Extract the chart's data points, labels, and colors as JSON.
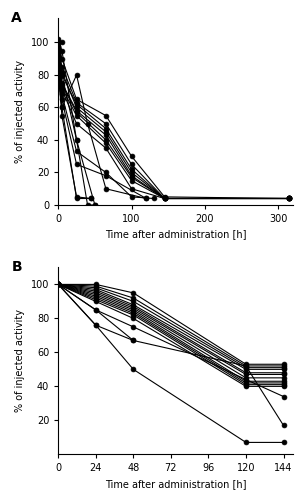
{
  "panel_A": {
    "label": "A",
    "series": [
      {
        "t": [
          0,
          5
        ],
        "v": [
          100,
          100
        ]
      },
      {
        "t": [
          0,
          5,
          25,
          50
        ],
        "v": [
          100,
          80,
          40,
          0
        ]
      },
      {
        "t": [
          0,
          5,
          25,
          40,
          50
        ],
        "v": [
          102,
          95,
          40,
          0,
          0
        ]
      },
      {
        "t": [
          0,
          5,
          25,
          65,
          100,
          145,
          315
        ],
        "v": [
          100,
          90,
          65,
          55,
          30,
          5,
          4
        ]
      },
      {
        "t": [
          0,
          5,
          25,
          65,
          100,
          145,
          315
        ],
        "v": [
          98,
          85,
          63,
          50,
          25,
          4,
          4
        ]
      },
      {
        "t": [
          0,
          5,
          25,
          65,
          100,
          145,
          315
        ],
        "v": [
          97,
          80,
          62,
          47,
          22,
          4,
          4
        ]
      },
      {
        "t": [
          0,
          5,
          25,
          65,
          100,
          145,
          315
        ],
        "v": [
          96,
          82,
          60,
          45,
          20,
          4,
          4
        ]
      },
      {
        "t": [
          0,
          5,
          25,
          65,
          100,
          145,
          315
        ],
        "v": [
          95,
          75,
          58,
          43,
          18,
          4,
          4
        ]
      },
      {
        "t": [
          0,
          5,
          25,
          65,
          100,
          145,
          315
        ],
        "v": [
          94,
          74,
          57,
          40,
          17,
          4,
          4
        ]
      },
      {
        "t": [
          0,
          5,
          25,
          65,
          100,
          145,
          315
        ],
        "v": [
          93,
          72,
          55,
          38,
          15,
          4,
          4
        ]
      },
      {
        "t": [
          0,
          5,
          25,
          65,
          100,
          145
        ],
        "v": [
          92,
          71,
          50,
          35,
          10,
          4
        ]
      },
      {
        "t": [
          0,
          5,
          25,
          65,
          100,
          130
        ],
        "v": [
          90,
          68,
          33,
          20,
          5,
          4
        ]
      },
      {
        "t": [
          0,
          5,
          25,
          65,
          120
        ],
        "v": [
          88,
          65,
          25,
          18,
          4
        ]
      },
      {
        "t": [
          0,
          5,
          25,
          40,
          65,
          120
        ],
        "v": [
          85,
          60,
          80,
          50,
          10,
          4
        ]
      },
      {
        "t": [
          0,
          5,
          25,
          45
        ],
        "v": [
          82,
          55,
          5,
          4
        ]
      },
      {
        "t": [
          0,
          5,
          25,
          45
        ],
        "v": [
          80,
          60,
          4,
          4
        ]
      }
    ],
    "xlabel": "Time after administration [h]",
    "ylabel": "% of injected activity",
    "xlim": [
      0,
      320
    ],
    "ylim": [
      0,
      115
    ],
    "xticks": [
      0,
      100,
      200,
      300
    ],
    "yticks": [
      0,
      20,
      40,
      60,
      80,
      100
    ]
  },
  "panel_B": {
    "label": "B",
    "series": [
      {
        "t": [
          0,
          24,
          48,
          120,
          144
        ],
        "v": [
          100,
          100,
          95,
          53,
          53
        ]
      },
      {
        "t": [
          0,
          24,
          48,
          120,
          144
        ],
        "v": [
          100,
          99,
          92,
          52,
          52
        ]
      },
      {
        "t": [
          0,
          24,
          48,
          120,
          144
        ],
        "v": [
          100,
          98,
          90,
          51,
          51
        ]
      },
      {
        "t": [
          0,
          24,
          48,
          120,
          144
        ],
        "v": [
          100,
          97,
          88,
          50,
          50
        ]
      },
      {
        "t": [
          0,
          24,
          48,
          120,
          144
        ],
        "v": [
          100,
          96,
          87,
          48,
          48
        ]
      },
      {
        "t": [
          0,
          24,
          48,
          120,
          144
        ],
        "v": [
          100,
          95,
          86,
          47,
          47
        ]
      },
      {
        "t": [
          0,
          24,
          48,
          120,
          144
        ],
        "v": [
          100,
          94,
          85,
          45,
          45
        ]
      },
      {
        "t": [
          0,
          24,
          48,
          120,
          144
        ],
        "v": [
          100,
          93,
          84,
          43,
          43
        ]
      },
      {
        "t": [
          0,
          24,
          48,
          120,
          144
        ],
        "v": [
          100,
          92,
          83,
          42,
          42
        ]
      },
      {
        "t": [
          0,
          24,
          48,
          120,
          144
        ],
        "v": [
          100,
          91,
          82,
          41,
          41
        ]
      },
      {
        "t": [
          0,
          24,
          48,
          120,
          144
        ],
        "v": [
          100,
          90,
          80,
          40,
          40
        ]
      },
      {
        "t": [
          0,
          24,
          48,
          120,
          144
        ],
        "v": [
          100,
          85,
          75,
          44,
          34
        ]
      },
      {
        "t": [
          0,
          24,
          48,
          120,
          144
        ],
        "v": [
          100,
          85,
          67,
          52,
          17
        ]
      },
      {
        "t": [
          0,
          24,
          48,
          120,
          144
        ],
        "v": [
          100,
          76,
          50,
          7,
          7
        ]
      },
      {
        "t": [
          0,
          24,
          48
        ],
        "v": [
          100,
          76,
          67
        ]
      }
    ],
    "xlabel": "Time after administration [h]",
    "ylabel": "% of injected activity",
    "xlim": [
      0,
      150
    ],
    "ylim": [
      0,
      110
    ],
    "xticks": [
      0,
      24,
      48,
      72,
      96,
      120,
      144
    ],
    "yticks": [
      20,
      40,
      60,
      80,
      100
    ]
  },
  "line_color": "#000000",
  "marker_color": "#000000",
  "marker_size": 3.5,
  "linewidth": 0.8,
  "bg_color": "#ffffff"
}
